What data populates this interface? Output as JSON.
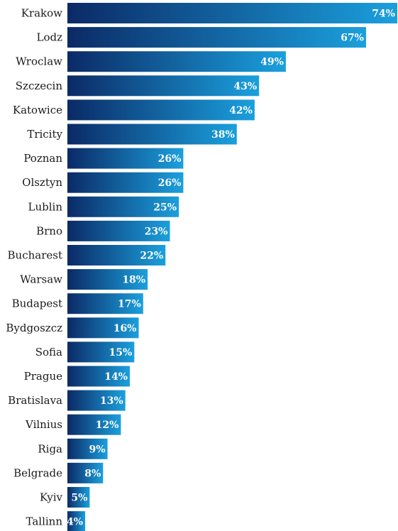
{
  "chart_data": {
    "type": "bar",
    "orientation": "horizontal",
    "categories": [
      "Krakow",
      "Lodz",
      "Wroclaw",
      "Szczecin",
      "Katowice",
      "Tricity",
      "Poznan",
      "Olsztyn",
      "Lublin",
      "Brno",
      "Bucharest",
      "Warsaw",
      "Budapest",
      "Bydgoszcz",
      "Sofia",
      "Prague",
      "Bratislava",
      "Vilnius",
      "Riga",
      "Belgrade",
      "Kyiv",
      "Tallinn"
    ],
    "values": [
      74,
      67,
      49,
      43,
      42,
      38,
      26,
      26,
      25,
      23,
      22,
      18,
      17,
      16,
      15,
      14,
      13,
      12,
      9,
      8,
      5,
      4
    ],
    "value_labels": [
      "74%",
      "67%",
      "49%",
      "43%",
      "42%",
      "38%",
      "26%",
      "26%",
      "25%",
      "23%",
      "22%",
      "18%",
      "17%",
      "16%",
      "15%",
      "14%",
      "13%",
      "12%",
      "9%",
      "8%",
      "5%",
      "4%"
    ],
    "title": "",
    "xlabel": "",
    "ylabel": "",
    "xlim": [
      0,
      74
    ],
    "grid": false,
    "legend": "none",
    "colors": {
      "bar_start": "#0b2a66",
      "bar_end": "#1aa0dd",
      "value_text": "#ffffff",
      "category_text": "#1a1a1a"
    }
  }
}
